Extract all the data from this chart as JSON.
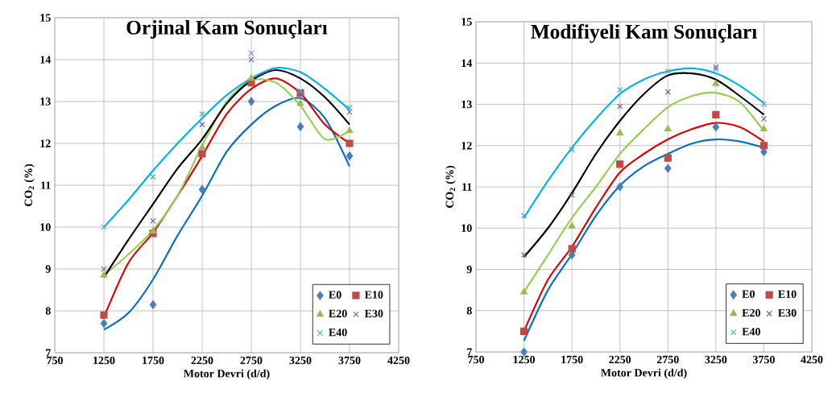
{
  "chart_data": [
    {
      "type": "scatter",
      "title": "Orjinal Kam Sonuçları",
      "xlabel": "Motor Devri (d/d)",
      "ylabel": "CO$_{2}$ (%)",
      "x": [
        1250,
        1750,
        2250,
        2750,
        3250,
        3750
      ],
      "xlim": [
        750,
        4250
      ],
      "xticks": [
        750,
        1250,
        1750,
        2250,
        2750,
        3250,
        3750,
        4250
      ],
      "ylim": [
        7,
        15
      ],
      "yticks": [
        7,
        8,
        9,
        10,
        11,
        12,
        13,
        14,
        15
      ],
      "grid": true,
      "legend": "bottom right",
      "series": [
        {
          "name": "E0",
          "color": "#4a7ebb",
          "marker": "diamond",
          "values": [
            7.7,
            8.15,
            10.9,
            13.0,
            12.4,
            11.7
          ]
        },
        {
          "name": "E10",
          "color": "#be4b48",
          "marker": "square",
          "values": [
            7.9,
            9.85,
            11.75,
            13.45,
            13.2,
            12.0
          ]
        },
        {
          "name": "E20",
          "color": "#98b954",
          "marker": "triangle",
          "values": [
            8.85,
            9.9,
            11.9,
            13.55,
            12.95,
            12.3
          ]
        },
        {
          "name": "E30",
          "color": "#7d60a0",
          "marker": "cross",
          "values": [
            9.0,
            10.15,
            12.45,
            14.0,
            13.2,
            12.75
          ]
        },
        {
          "name": "E40",
          "color": "#4bacc6",
          "marker": "cross",
          "values": [
            10.0,
            11.2,
            12.7,
            14.15,
            13.25,
            12.85
          ]
        },
        {
          "type": "line",
          "color": "#0070c0",
          "x": [
            1250,
            1500,
            1750,
            2000,
            2250,
            2500,
            2750,
            3000,
            3250,
            3500,
            3750
          ],
          "values": [
            7.55,
            7.95,
            8.75,
            9.8,
            10.75,
            11.8,
            12.45,
            12.9,
            13.08,
            12.6,
            11.45
          ]
        },
        {
          "type": "line",
          "color": "#e00000",
          "x": [
            1250,
            1500,
            1750,
            2000,
            2250,
            2500,
            2750,
            3000,
            3250,
            3500,
            3750
          ],
          "values": [
            7.85,
            9.15,
            9.87,
            10.75,
            11.7,
            12.7,
            13.3,
            13.55,
            13.2,
            12.45,
            12.0
          ]
        },
        {
          "type": "line",
          "color": "#92d050",
          "x": [
            1250,
            1500,
            1750,
            2000,
            2250,
            2500,
            2750,
            3000,
            3250,
            3500,
            3750
          ],
          "values": [
            8.85,
            9.35,
            9.93,
            10.75,
            11.95,
            13.0,
            13.5,
            13.45,
            12.9,
            12.1,
            12.3
          ]
        },
        {
          "type": "line",
          "color": "#000000",
          "x": [
            1250,
            1500,
            1750,
            2000,
            2250,
            2500,
            2750,
            3000,
            3250,
            3500,
            3750
          ],
          "values": [
            8.8,
            9.7,
            10.55,
            11.4,
            12.1,
            12.95,
            13.5,
            13.75,
            13.55,
            13.1,
            12.45
          ]
        },
        {
          "type": "line",
          "color": "#00b0f0",
          "x": [
            1250,
            1500,
            1750,
            2000,
            2250,
            2500,
            2750,
            3000,
            3250,
            3500,
            3750
          ],
          "values": [
            10.0,
            10.65,
            11.35,
            12.0,
            12.6,
            13.15,
            13.55,
            13.8,
            13.7,
            13.3,
            12.8
          ]
        }
      ]
    },
    {
      "type": "scatter",
      "title": "Modifiyeli Kam Sonuçları",
      "xlabel": "Motor Devri (d/d)",
      "ylabel": "CO$_{2}$ (%)",
      "x": [
        1250,
        1750,
        2250,
        2750,
        3250,
        3750
      ],
      "xlim": [
        750,
        4250
      ],
      "xticks": [
        750,
        1250,
        1750,
        2250,
        2750,
        3250,
        3750,
        4250
      ],
      "ylim": [
        7,
        15
      ],
      "yticks": [
        7,
        8,
        9,
        10,
        11,
        12,
        13,
        14,
        15
      ],
      "grid": true,
      "legend": "bottom right",
      "series": [
        {
          "name": "E0",
          "color": "#4a7ebb",
          "marker": "diamond",
          "values": [
            7.0,
            9.35,
            11.0,
            11.45,
            12.45,
            11.85
          ]
        },
        {
          "name": "E10",
          "color": "#be4b48",
          "marker": "square",
          "values": [
            7.5,
            9.5,
            11.55,
            11.7,
            12.75,
            12.0
          ]
        },
        {
          "name": "E20",
          "color": "#98b954",
          "marker": "triangle",
          "values": [
            8.45,
            10.05,
            12.3,
            12.4,
            13.5,
            12.4
          ]
        },
        {
          "name": "E30",
          "color": "#7d60a0",
          "marker": "cross",
          "values": [
            9.35,
            10.8,
            12.95,
            13.3,
            13.9,
            12.65
          ]
        },
        {
          "name": "E40",
          "color": "#4bacc6",
          "marker": "cross",
          "values": [
            10.3,
            11.9,
            13.35,
            13.8,
            13.85,
            13.0
          ]
        },
        {
          "type": "line",
          "color": "#0070c0",
          "x": [
            1250,
            1500,
            1750,
            2000,
            2250,
            2500,
            2750,
            3000,
            3250,
            3500,
            3750
          ],
          "values": [
            7.27,
            8.5,
            9.37,
            10.3,
            11.03,
            11.5,
            11.8,
            12.05,
            12.15,
            12.1,
            11.95
          ]
        },
        {
          "type": "line",
          "color": "#e00000",
          "x": [
            1250,
            1500,
            1750,
            2000,
            2250,
            2500,
            2750,
            3000,
            3250,
            3500,
            3750
          ],
          "values": [
            7.5,
            8.75,
            9.55,
            10.5,
            11.35,
            11.8,
            12.15,
            12.4,
            12.55,
            12.45,
            12.1
          ]
        },
        {
          "type": "line",
          "color": "#92d050",
          "x": [
            1250,
            1500,
            1750,
            2000,
            2250,
            2500,
            2750,
            3000,
            3250,
            3500,
            3750
          ],
          "values": [
            8.45,
            9.35,
            10.25,
            11.0,
            11.8,
            12.4,
            12.93,
            13.2,
            13.28,
            13.05,
            12.35
          ]
        },
        {
          "type": "line",
          "color": "#000000",
          "x": [
            1250,
            1500,
            1750,
            2000,
            2250,
            2500,
            2750,
            3000,
            3250,
            3500,
            3750
          ],
          "values": [
            9.3,
            10.0,
            10.85,
            11.8,
            12.6,
            13.25,
            13.7,
            13.75,
            13.6,
            13.2,
            12.75
          ]
        },
        {
          "type": "line",
          "color": "#00b0f0",
          "x": [
            1250,
            1500,
            1750,
            2000,
            2250,
            2500,
            2750,
            3000,
            3250,
            3500,
            3750
          ],
          "values": [
            10.25,
            11.15,
            11.95,
            12.65,
            13.25,
            13.6,
            13.8,
            13.87,
            13.75,
            13.45,
            13.03
          ]
        }
      ]
    }
  ]
}
